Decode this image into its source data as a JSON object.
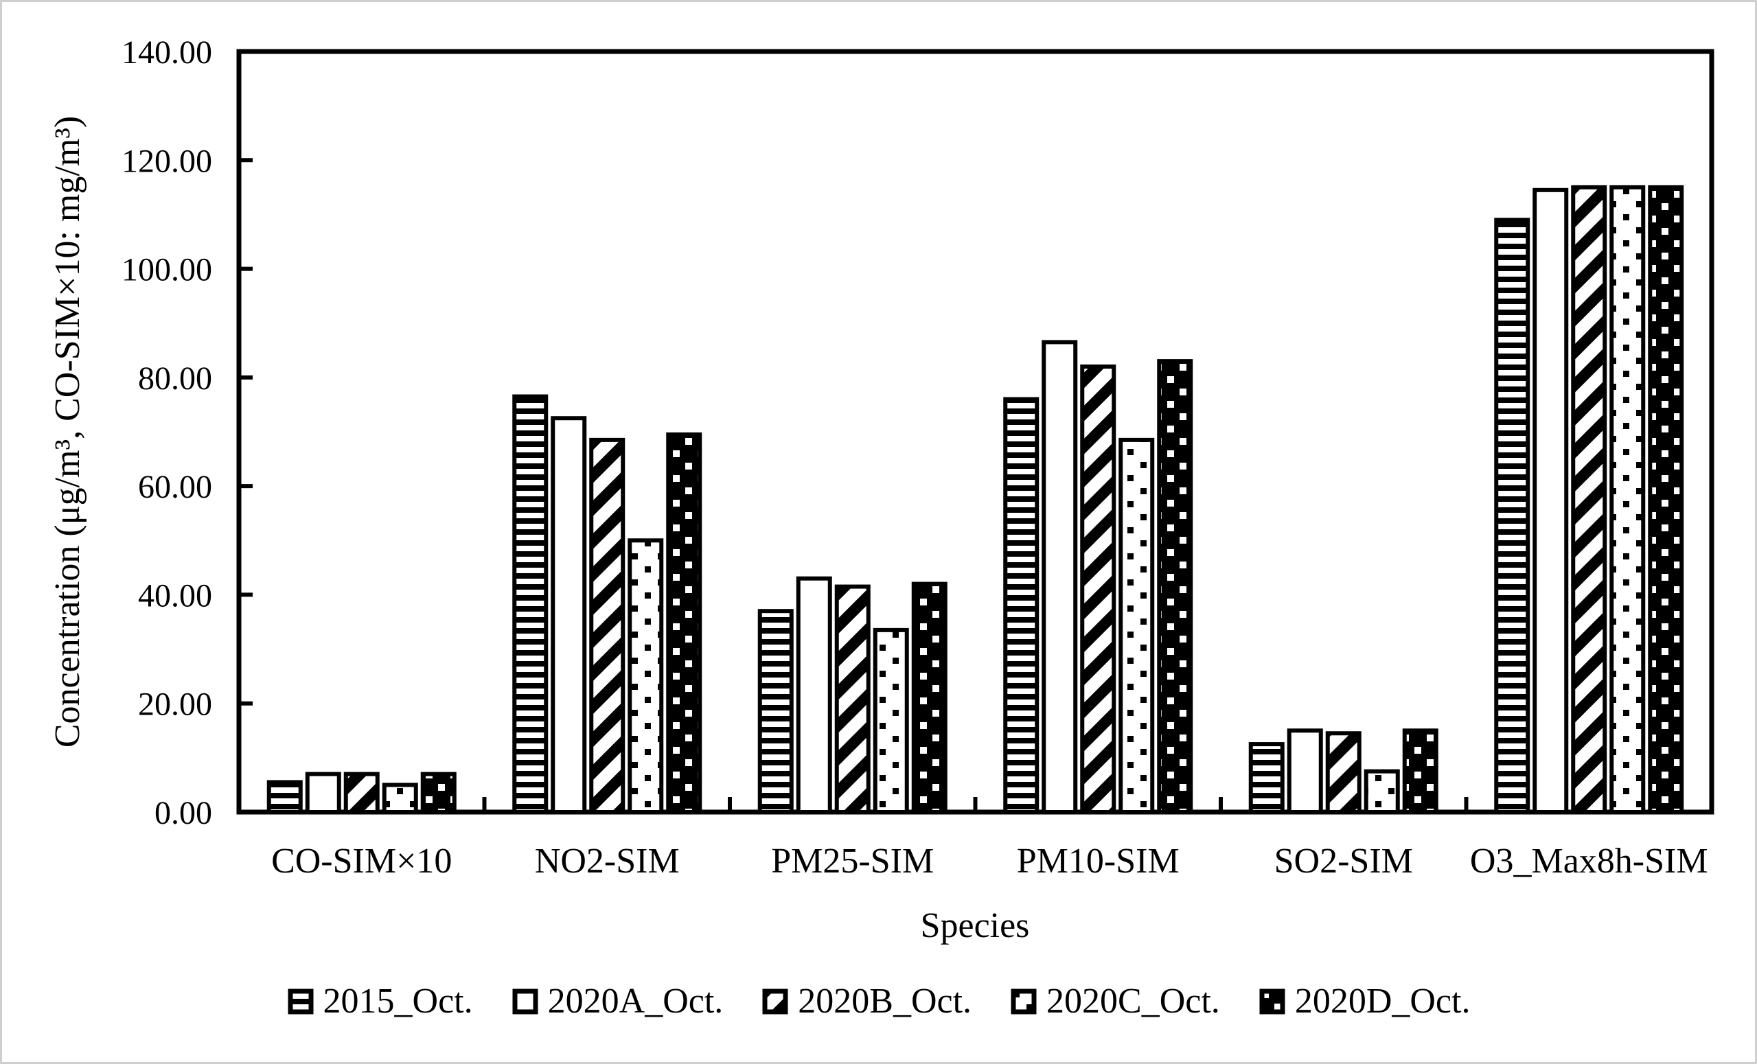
{
  "chart_data": {
    "type": "bar",
    "title": "",
    "xlabel": "Species",
    "ylabel": "Concentration (μg/m³, CO-SIM×10: mg/m³)",
    "ylim": [
      0,
      140
    ],
    "ytick_step": 20,
    "ytick_labels": [
      "0.00",
      "20.00",
      "40.00",
      "60.00",
      "80.00",
      "100.00",
      "120.00",
      "140.00"
    ],
    "grid": false,
    "legend_position": "bottom-center",
    "bar_outline_color": "#000000",
    "background_color": "#ffffff",
    "frame_border_color": "#cfcfcf",
    "categories": [
      "CO-SIM×10",
      "NO2-SIM",
      "PM25-SIM",
      "PM10-SIM",
      "SO2-SIM",
      "O3_Max8h-SIM"
    ],
    "series": [
      {
        "name": "2015_Oct.",
        "pattern": "horizontal-stripes",
        "values": [
          5.5,
          76.5,
          37.0,
          76.0,
          12.5,
          109.0
        ]
      },
      {
        "name": "2020A_Oct.",
        "pattern": "solid-white",
        "values": [
          7.0,
          72.5,
          43.0,
          86.5,
          15.0,
          114.5
        ]
      },
      {
        "name": "2020B_Oct.",
        "pattern": "diagonal-stripes",
        "values": [
          7.0,
          68.5,
          41.5,
          82.0,
          14.5,
          115.0
        ]
      },
      {
        "name": "2020C_Oct.",
        "pattern": "black-dots-on-white",
        "values": [
          5.0,
          50.0,
          33.5,
          68.5,
          7.5,
          115.0
        ]
      },
      {
        "name": "2020D_Oct.",
        "pattern": "white-dots-on-black",
        "values": [
          7.0,
          69.5,
          42.0,
          83.0,
          15.0,
          115.0
        ]
      }
    ]
  }
}
